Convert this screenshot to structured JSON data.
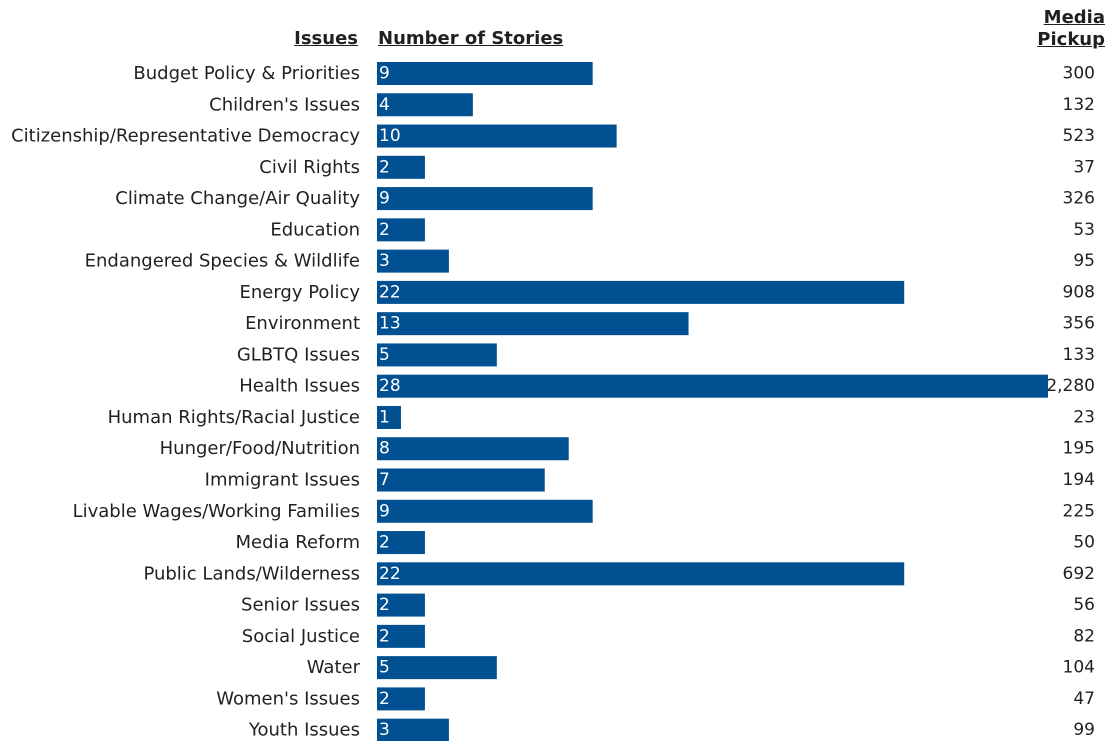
{
  "headers": {
    "issues": "Issues",
    "stories": "Number of Stories",
    "pickup_line1": "Media",
    "pickup_line2": "Pickup"
  },
  "colors": {
    "bar": "#005092",
    "text": "#231f20"
  },
  "chart_data": {
    "type": "bar",
    "orientation": "horizontal",
    "categories": [
      "Budget Policy & Priorities",
      "Children's Issues",
      "Citizenship/Representative Democracy",
      "Civil Rights",
      "Climate Change/Air Quality",
      "Education",
      "Endangered Species & Wildlife",
      "Energy Policy",
      "Environment",
      "GLBTQ Issues",
      "Health Issues",
      "Human Rights/Racial Justice",
      "Hunger/Food/Nutrition",
      "Immigrant Issues",
      "Livable Wages/Working Families",
      "Media Reform",
      "Public Lands/Wilderness",
      "Senior Issues",
      "Social Justice",
      "Water",
      "Women's Issues",
      "Youth Issues"
    ],
    "series": [
      {
        "name": "Number of Stories",
        "values": [
          9,
          4,
          10,
          2,
          9,
          2,
          3,
          22,
          13,
          5,
          28,
          1,
          8,
          7,
          9,
          2,
          22,
          2,
          2,
          5,
          2,
          3
        ]
      },
      {
        "name": "Media Pickup",
        "values": [
          300,
          132,
          523,
          37,
          326,
          53,
          95,
          908,
          356,
          133,
          2280,
          23,
          195,
          194,
          225,
          50,
          692,
          56,
          82,
          104,
          47,
          99
        ]
      }
    ],
    "pickup_labels": [
      "300",
      "132",
      "523",
      "37",
      "326",
      "53",
      "95",
      "908",
      "356",
      "133",
      "2,280",
      "23",
      "195",
      "194",
      "225",
      "50",
      "692",
      "56",
      "82",
      "104",
      "47",
      "99"
    ],
    "xlim": [
      0,
      28
    ],
    "grid": false,
    "legend": "none"
  }
}
